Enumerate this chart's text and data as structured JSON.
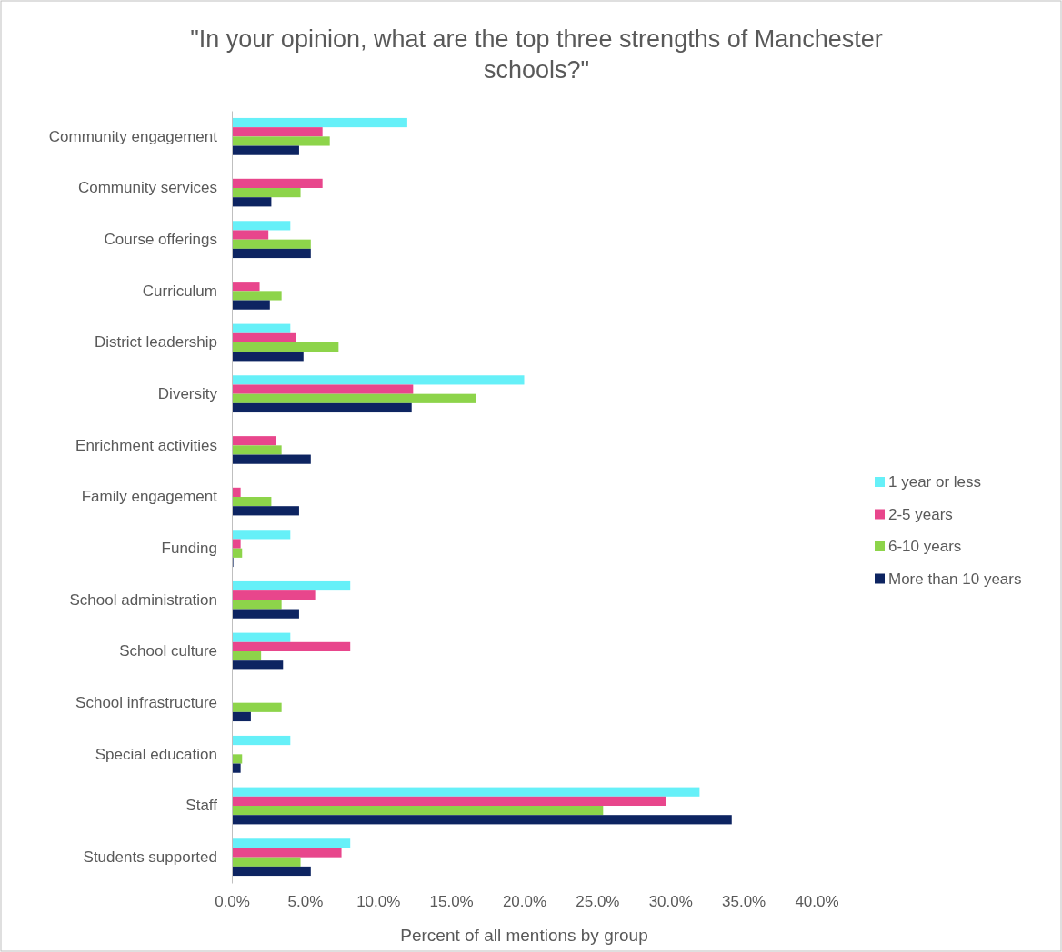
{
  "chart_data": {
    "type": "bar",
    "orientation": "horizontal",
    "title": "\"In your opinion, what are the top three strengths of Manchester schools?\"",
    "xlabel": "Percent of all mentions by group",
    "categories": [
      "Community engagement",
      "Community services",
      "Course offerings",
      "Curriculum",
      "District leadership",
      "Diversity",
      "Enrichment activities",
      "Family engagement",
      "Funding",
      "School administration",
      "School culture",
      "School infrastructure",
      "Special education",
      "Staff",
      "Students supported"
    ],
    "series": [
      {
        "name": "1 year or less",
        "color": "#66f0f8",
        "values": [
          12.0,
          0,
          4.0,
          0,
          4.0,
          20.0,
          0,
          0,
          4.0,
          8.1,
          4.0,
          0,
          4.0,
          32.0,
          8.1
        ]
      },
      {
        "name": "2-5 years",
        "color": "#e8468c",
        "values": [
          6.2,
          6.2,
          2.5,
          1.9,
          4.4,
          12.4,
          3.0,
          0.6,
          0.6,
          5.7,
          8.1,
          0,
          0,
          29.7,
          7.5
        ]
      },
      {
        "name": "6-10 years",
        "color": "#8dd44a",
        "values": [
          6.7,
          4.7,
          5.4,
          3.4,
          7.3,
          16.7,
          3.4,
          2.7,
          0.7,
          3.4,
          2.0,
          3.4,
          0.7,
          25.4,
          4.7
        ]
      },
      {
        "name": "More than 10 years",
        "color": "#0d2461",
        "values": [
          4.6,
          2.7,
          5.4,
          2.6,
          4.9,
          12.3,
          5.4,
          4.6,
          0.1,
          4.6,
          3.5,
          1.3,
          0.6,
          34.2,
          5.4
        ]
      }
    ],
    "xlim": [
      0,
      40
    ],
    "xticks": [
      {
        "value": 0,
        "label": "0.0%"
      },
      {
        "value": 5,
        "label": "5.0%"
      },
      {
        "value": 10,
        "label": "10.0%"
      },
      {
        "value": 15,
        "label": "15.0%"
      },
      {
        "value": 20,
        "label": "20.0%"
      },
      {
        "value": 25,
        "label": "25.0%"
      },
      {
        "value": 30,
        "label": "30.0%"
      },
      {
        "value": 35,
        "label": "35.0%"
      },
      {
        "value": 40,
        "label": "40.0%"
      }
    ],
    "grid": false,
    "legend": "right"
  }
}
